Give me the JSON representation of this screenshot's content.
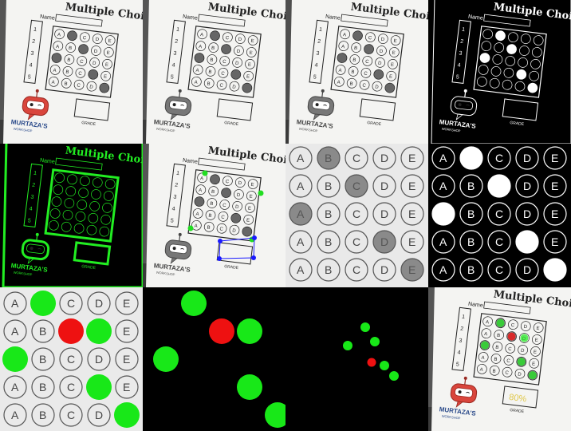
{
  "sheet": {
    "title": "Multiple Choice",
    "name_label": "Name",
    "numbers": [
      "1",
      "2",
      "3",
      "4",
      "5"
    ],
    "choices": [
      "A",
      "B",
      "C",
      "D",
      "E"
    ],
    "logo_name": "MURTAZA'S",
    "logo_sub": "WORKSHOP",
    "grade_label": "GRADE",
    "score": "80%"
  },
  "answers": {
    "marked": [
      1,
      2,
      0,
      3,
      4
    ],
    "correct": [
      1,
      3,
      0,
      3,
      4
    ]
  },
  "colors": {
    "correct": "#18e818",
    "wrong": "#ee1111",
    "contour": "#22ee22",
    "corner_green": "#22dd22",
    "corner_blue": "#1a1aff",
    "robot_red": "#d9453c",
    "logo_blue": "#2a4a8a"
  }
}
